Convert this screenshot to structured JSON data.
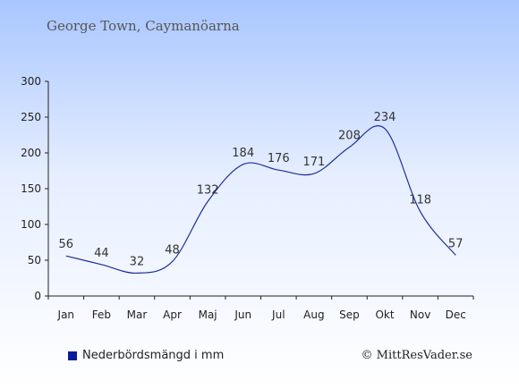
{
  "title": "George Town, Caymanöarna",
  "legend": {
    "label": "Nederbördsmängd i mm"
  },
  "credit": "© MittResVader.se",
  "colors": {
    "line": "#1f2e99",
    "swatch": "#0a1a9c",
    "axis": "#222222"
  },
  "chart_data": {
    "type": "line",
    "title": "George Town, Caymanöarna",
    "categories": [
      "Jan",
      "Feb",
      "Mar",
      "Apr",
      "Maj",
      "Jun",
      "Jul",
      "Aug",
      "Sep",
      "Okt",
      "Nov",
      "Dec"
    ],
    "series": [
      {
        "name": "Nederbördsmängd i mm",
        "values": [
          56,
          44,
          32,
          48,
          132,
          184,
          176,
          171,
          208,
          234,
          118,
          57
        ]
      }
    ],
    "data_labels": [
      "56",
      "44",
      "32",
      "48",
      "132",
      "184",
      "176",
      "171",
      "208",
      "234",
      "118",
      "57"
    ],
    "yticks": [
      0,
      50,
      100,
      150,
      200,
      250,
      300
    ],
    "ylim": [
      0,
      300
    ],
    "grid": false,
    "legend_position": "bottom-left"
  }
}
